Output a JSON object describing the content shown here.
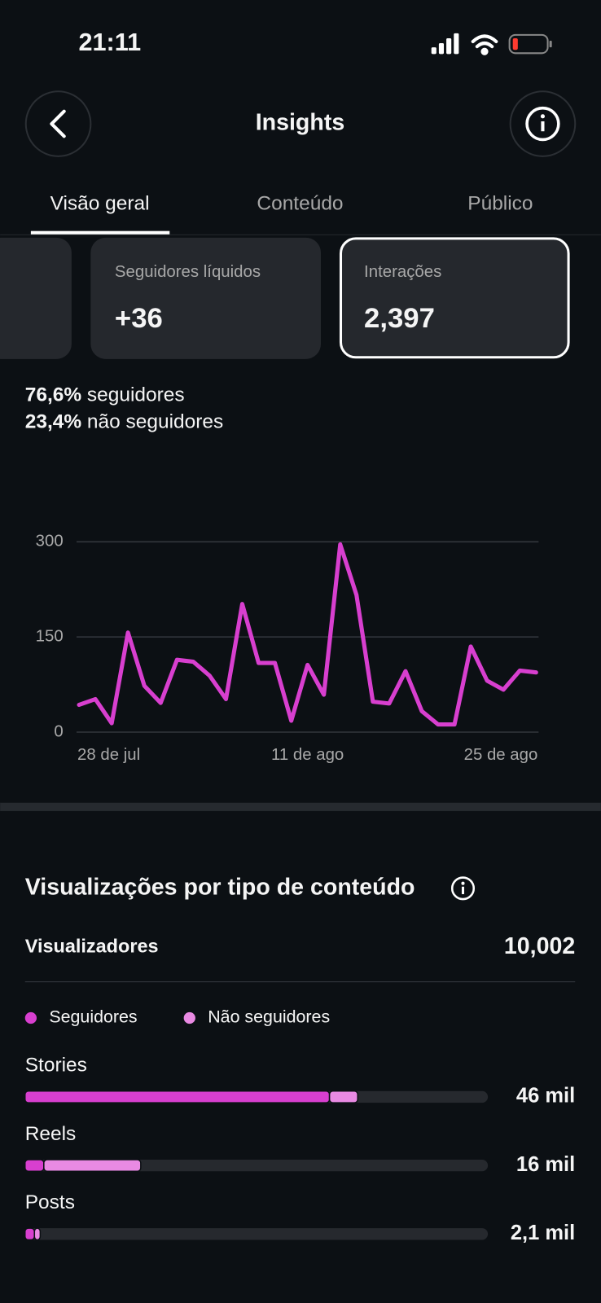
{
  "status_bar": {
    "time": "21:11"
  },
  "header": {
    "title": "Insights"
  },
  "tabs": [
    "Visão geral",
    "Conteúdo",
    "Público"
  ],
  "cards": [
    {
      "label": "Seguidores líquidos",
      "value": "+36"
    },
    {
      "label": "Interações",
      "value": "2,397"
    }
  ],
  "split": [
    {
      "percent": "76,6%",
      "label": "seguidores"
    },
    {
      "percent": "23,4%",
      "label": "não seguidores"
    }
  ],
  "chart": {
    "type": "line",
    "color": "#d83fcf",
    "categories": [
      "28 de jul",
      null,
      null,
      null,
      null,
      null,
      null,
      null,
      null,
      null,
      null,
      null,
      null,
      null,
      "11 de ago",
      null,
      null,
      null,
      null,
      null,
      null,
      null,
      null,
      null,
      null,
      null,
      null,
      null,
      "25 de ago"
    ],
    "values": [
      43,
      52,
      14,
      157,
      73,
      46,
      114,
      111,
      89,
      52,
      202,
      109,
      109,
      18,
      106,
      59,
      296,
      216,
      48,
      45,
      96,
      33,
      12,
      12,
      135,
      81,
      67,
      97,
      94
    ],
    "ylim": [
      0,
      300
    ],
    "yticks": [
      0,
      150,
      300
    ],
    "grid": true
  },
  "breakdown": {
    "type": "stacked-bar",
    "title": "Visualizações por tipo de conteúdo",
    "total_label": "Visualizadores",
    "total": "10,002",
    "categories": [
      "Stories",
      "Reels",
      "Posts"
    ],
    "series": [
      {
        "name": "Seguidores",
        "color": "#d83fcf",
        "values": [
          42.1,
          2.6,
          1.3
        ]
      },
      {
        "name": "Não seguidores",
        "color": "#e98ae3",
        "values": [
          3.9,
          13.4,
          0.8
        ]
      }
    ],
    "total_labels": [
      "46 mil",
      "16 mil",
      "2,1 mil"
    ],
    "xlim": [
      0,
      64
    ]
  }
}
